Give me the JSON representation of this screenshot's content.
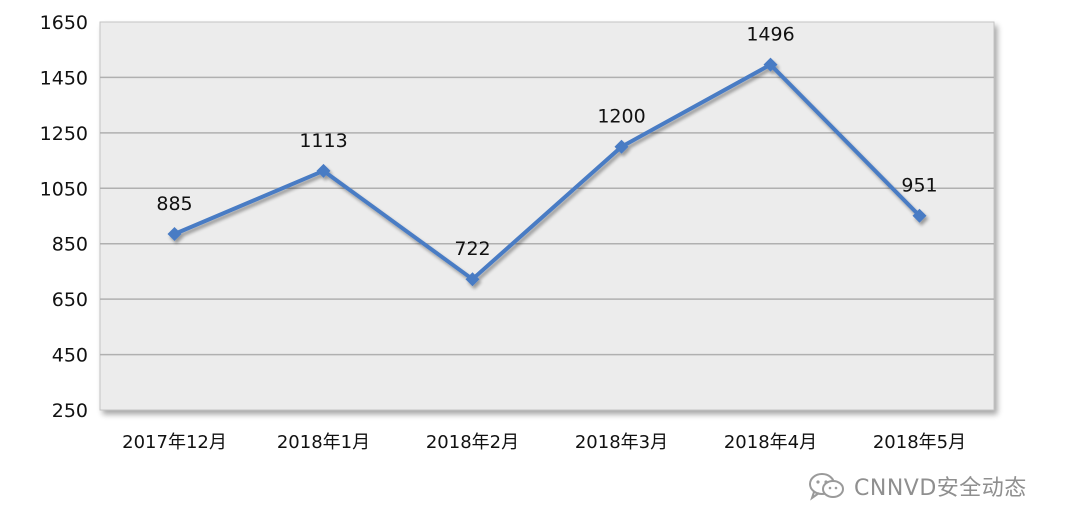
{
  "chart_data": {
    "type": "line",
    "categories": [
      "2017年12月",
      "2018年1月",
      "2018年2月",
      "2018年3月",
      "2018年4月",
      "2018年5月"
    ],
    "series": [
      {
        "values": [
          885,
          1113,
          722,
          1200,
          1496,
          951
        ]
      }
    ],
    "data_labels": [
      "885",
      "1113",
      "722",
      "1200",
      "1496",
      "951"
    ],
    "ylim": [
      250,
      1650
    ],
    "yticks": [
      250,
      450,
      650,
      850,
      1050,
      1250,
      1450,
      1650
    ],
    "grid": true,
    "title": "",
    "xlabel": "",
    "ylabel": "",
    "colors": {
      "line": "#4a7cc4",
      "marker": "#4a7cc4",
      "plot_bg": "#ececec",
      "grid": "#b0b0b0"
    }
  },
  "watermark": {
    "text": "CNNVD安全动态",
    "icon": "wechat-icon"
  }
}
